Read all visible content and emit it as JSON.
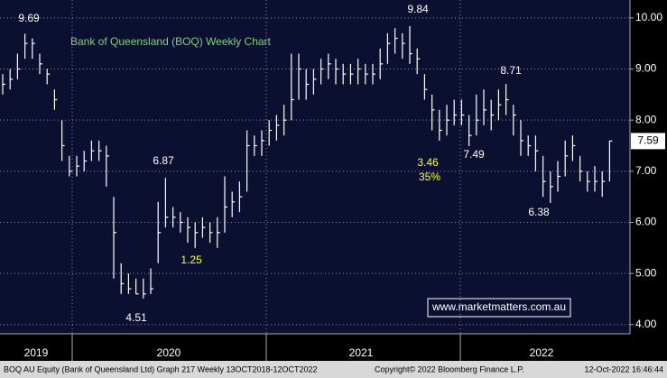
{
  "chart_data": {
    "type": "ohlc",
    "title": "Bank of Queensland (BOQ) Weekly Chart",
    "title_color": "#7fd07f",
    "color": "#ffffff",
    "close": [
      8.7,
      8.8,
      9.0,
      9.5,
      9.5,
      9.1,
      8.9,
      8.4,
      7.5,
      7.0,
      7.1,
      7.2,
      7.4,
      7.4,
      7.3,
      5.8,
      4.8,
      4.7,
      4.6,
      4.6,
      4.7,
      5.8,
      6.1,
      6.1,
      6.0,
      5.9,
      5.8,
      5.9,
      5.8,
      5.8,
      6.3,
      6.4,
      6.5,
      7.5,
      7.5,
      7.6,
      7.8,
      7.9,
      8.0,
      8.4,
      9.0,
      8.7,
      8.8,
      9.0,
      9.1,
      9.0,
      8.9,
      8.9,
      9.0,
      8.9,
      8.9,
      9.1,
      9.5,
      9.6,
      9.5,
      9.3,
      9.2,
      8.6,
      8.2,
      7.8,
      8.0,
      8.1,
      8.1,
      7.7,
      8.0,
      8.2,
      8.1,
      8.3,
      8.4,
      8.1,
      7.6,
      7.5,
      7.4,
      6.8,
      6.7,
      6.9,
      7.3,
      7.5,
      7.0,
      6.8,
      6.8,
      6.8,
      7.59
    ],
    "high": [
      8.9,
      9.0,
      9.3,
      9.69,
      9.6,
      9.3,
      9.0,
      8.6,
      8.0,
      7.3,
      7.3,
      7.4,
      7.6,
      7.6,
      7.5,
      6.5,
      5.2,
      5.0,
      4.9,
      4.9,
      5.1,
      6.4,
      6.87,
      6.3,
      6.2,
      6.1,
      6.0,
      6.1,
      6.0,
      6.1,
      6.9,
      6.6,
      6.8,
      7.8,
      7.7,
      7.8,
      8.0,
      8.1,
      8.3,
      9.3,
      9.3,
      9.0,
      9.0,
      9.2,
      9.3,
      9.2,
      9.1,
      9.1,
      9.2,
      9.1,
      9.1,
      9.4,
      9.7,
      9.8,
      9.7,
      9.84,
      9.4,
      8.9,
      8.5,
      8.2,
      8.3,
      8.4,
      8.4,
      8.1,
      8.5,
      8.6,
      8.4,
      8.6,
      8.71,
      8.3,
      8.0,
      7.7,
      7.7,
      7.3,
      7.0,
      7.2,
      7.6,
      7.7,
      7.3,
      7.0,
      7.1,
      7.0,
      7.6
    ],
    "low": [
      8.5,
      8.6,
      8.8,
      9.2,
      9.2,
      8.9,
      8.7,
      8.2,
      7.2,
      6.9,
      6.9,
      7.0,
      7.2,
      7.2,
      6.7,
      4.9,
      4.6,
      4.6,
      4.6,
      4.51,
      4.6,
      5.2,
      5.9,
      5.9,
      5.8,
      5.6,
      5.5,
      5.7,
      5.6,
      5.5,
      5.8,
      6.1,
      6.2,
      6.6,
      7.3,
      7.3,
      7.5,
      7.6,
      7.7,
      8.0,
      8.4,
      8.4,
      8.5,
      8.7,
      8.8,
      8.7,
      8.7,
      8.7,
      8.7,
      8.7,
      8.7,
      8.8,
      9.1,
      9.3,
      9.2,
      9.1,
      8.9,
      8.4,
      7.8,
      7.6,
      7.7,
      7.9,
      7.9,
      7.49,
      7.7,
      7.9,
      7.8,
      8.0,
      8.1,
      7.7,
      7.3,
      7.3,
      7.0,
      6.5,
      6.38,
      6.6,
      6.9,
      7.2,
      6.8,
      6.6,
      6.6,
      6.5,
      6.8
    ],
    "ylim": [
      3.82,
      10.35
    ],
    "yticks": [
      {
        "value": 4,
        "label": "4.00"
      },
      {
        "value": 5,
        "label": "5.00"
      },
      {
        "value": 6,
        "label": "6.00"
      },
      {
        "value": 7,
        "label": "7.00"
      },
      {
        "value": 8,
        "label": "8.00"
      },
      {
        "value": 9,
        "label": "9.00"
      },
      {
        "value": 10,
        "label": "10.00"
      }
    ],
    "grid": true,
    "year_labels": [
      "2019",
      "2020",
      "2021",
      "2022"
    ],
    "annotations": [
      {
        "text": "9.69",
        "color": "#ffffff"
      },
      {
        "text": "6.87",
        "color": "#ffffff"
      },
      {
        "text": "4.51",
        "color": "#ffffff"
      },
      {
        "text": "1.25",
        "color": "#ffff33"
      },
      {
        "text": "9.84",
        "color": "#ffffff"
      },
      {
        "text": "3.46",
        "color": "#ffff33"
      },
      {
        "text": "35%",
        "color": "#ffff33"
      },
      {
        "text": "7.49",
        "color": "#ffffff"
      },
      {
        "text": "8.71",
        "color": "#ffffff"
      },
      {
        "text": "6.38",
        "color": "#ffffff"
      }
    ],
    "watermark": "www.marketmatters.com.au",
    "footer": [
      "BOQ AU Equity (Bank of Queensland Ltd) Graph 217  Weekly 13OCT2018-12OCT2022",
      "Copyright© 2022 Bloomberg Finance L.P.",
      "12-Oct-2022 16:46:44"
    ]
  }
}
